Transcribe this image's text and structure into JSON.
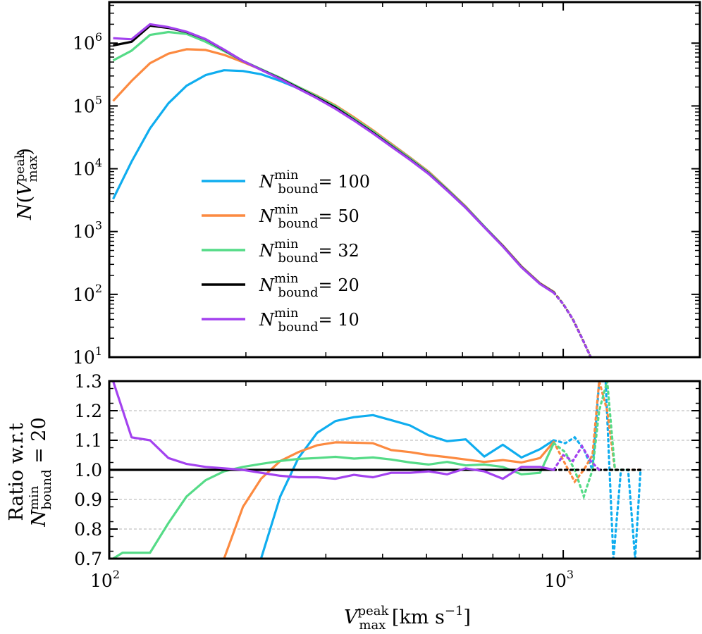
{
  "chart_data": [
    {
      "type": "line",
      "panel": "top",
      "xscale": "log",
      "yscale": "log",
      "xlim": [
        100,
        2000
      ],
      "ylim": [
        10,
        4500000
      ],
      "ylabel": "N(V_max^peak)",
      "yticks": [
        {
          "base": "10",
          "exp": "1",
          "value": 10
        },
        {
          "base": "10",
          "exp": "2",
          "value": 100
        },
        {
          "base": "10",
          "exp": "3",
          "value": 1000
        },
        {
          "base": "10",
          "exp": "4",
          "value": 10000
        },
        {
          "base": "10",
          "exp": "5",
          "value": 100000
        },
        {
          "base": "10",
          "exp": "6",
          "value": 1000000
        }
      ],
      "legend": {
        "position": "lower-left",
        "prefix": "N",
        "sup": "min",
        "sub": "bound",
        "entries": [
          "= 100",
          "= 50",
          "= 32",
          "= 20",
          "= 10"
        ]
      },
      "series": [
        {
          "name": "N_bound^min = 100",
          "color": "#0fadef",
          "x": [
            102,
            112,
            123,
            135,
            148,
            163,
            179,
            197,
            216,
            238,
            261,
            287,
            315,
            346,
            381,
            418,
            460,
            505,
            555,
            610,
            670,
            736,
            809,
            889,
            953
          ],
          "y": [
            3300,
            13000,
            44000,
            110000,
            210000,
            310000,
            370000,
            360000,
            320000,
            250000,
            190000,
            140000,
            100000,
            65000,
            40000,
            25000,
            15000,
            9000,
            4800,
            2500,
            1200,
            600,
            280,
            150,
            110
          ],
          "dotted_x": [
            953,
            1000,
            1050,
            1100,
            1150
          ],
          "dotted_y": [
            110,
            70,
            40,
            20,
            10
          ]
        },
        {
          "name": "N_bound^min = 50",
          "color": "#fc8a40",
          "x": [
            102,
            112,
            123,
            135,
            148,
            163,
            179,
            197,
            216,
            238,
            261,
            287,
            315,
            346,
            381,
            418,
            460,
            505,
            555,
            610,
            670,
            736,
            809,
            889,
            953
          ],
          "y": [
            120000,
            250000,
            480000,
            680000,
            800000,
            780000,
            650000,
            500000,
            380000,
            280000,
            200000,
            145000,
            102000,
            66000,
            41000,
            25000,
            15000,
            9000,
            4800,
            2500,
            1200,
            600,
            280,
            150,
            110
          ],
          "dotted_x": [
            953,
            1000,
            1050,
            1100,
            1150
          ],
          "dotted_y": [
            110,
            70,
            40,
            20,
            10
          ]
        },
        {
          "name": "N_bound^min = 32",
          "color": "#55db87",
          "x": [
            102,
            112,
            123,
            135,
            148,
            163,
            179,
            197,
            216,
            238,
            261,
            287,
            315,
            346,
            381,
            418,
            460,
            505,
            555,
            610,
            670,
            736,
            809,
            889,
            953
          ],
          "y": [
            530000,
            760000,
            1350000,
            1500000,
            1400000,
            1050000,
            750000,
            520000,
            385000,
            280000,
            200000,
            142000,
            99000,
            63000,
            39500,
            24000,
            14600,
            8700,
            4700,
            2450,
            1200,
            590,
            275,
            148,
            108
          ],
          "dotted_x": [
            953,
            1000,
            1050,
            1100,
            1150
          ],
          "dotted_y": [
            108,
            70,
            40,
            20,
            10
          ]
        },
        {
          "name": "N_bound^min = 20",
          "color": "#000000",
          "x": [
            102,
            112,
            123,
            135,
            148,
            163,
            179,
            197,
            216,
            238,
            261,
            287,
            315,
            346,
            381,
            418,
            460,
            505,
            555,
            610,
            670,
            736,
            809,
            889,
            953
          ],
          "y": [
            920000,
            1050000,
            1900000,
            1750000,
            1500000,
            1150000,
            780000,
            520000,
            378000,
            272000,
            193000,
            136000,
            94000,
            60000,
            37500,
            23000,
            14000,
            8400,
            4550,
            2400,
            1180,
            585,
            272,
            147,
            107
          ],
          "dotted_x": [
            953,
            1000,
            1050,
            1100,
            1150
          ],
          "dotted_y": [
            107,
            70,
            40,
            20,
            10
          ]
        },
        {
          "name": "N_bound^min = 10",
          "color": "#a342ef",
          "x": [
            102,
            112,
            123,
            135,
            148,
            163,
            179,
            197,
            216,
            238,
            261,
            287,
            315,
            346,
            381,
            418,
            460,
            505,
            555,
            610,
            670,
            736,
            809,
            889,
            953
          ],
          "y": [
            1200000,
            1150000,
            2000000,
            1800000,
            1520000,
            1160000,
            790000,
            520000,
            375000,
            268000,
            188000,
            132000,
            90000,
            58500,
            36500,
            22500,
            13800,
            8300,
            4500,
            2380,
            1170,
            580,
            270,
            146,
            106
          ],
          "dotted_x": [
            953,
            1000,
            1050,
            1100,
            1150
          ],
          "dotted_y": [
            106,
            70,
            40,
            20,
            10
          ]
        }
      ]
    },
    {
      "type": "line",
      "panel": "bottom",
      "xscale": "log",
      "yscale": "linear",
      "xlim": [
        100,
        2000
      ],
      "ylim": [
        0.7,
        1.3
      ],
      "grid": "horizontal-dashed",
      "xlabel": "V_max^peak [km s^-1]",
      "ylabel_line1": "Ratio w.r.t",
      "ylabel_line2": "N_bound^min = 20",
      "yticks": [
        "0.7",
        "0.8",
        "0.9",
        "1.0",
        "1.1",
        "1.2",
        "1.3"
      ],
      "xticks": [
        {
          "base": "10",
          "exp": "2",
          "value": 100
        },
        {
          "base": "10",
          "exp": "3",
          "value": 1000
        }
      ],
      "series": [
        {
          "name": "N_bound^min = 100",
          "color": "#0fadef",
          "x": [
            216,
            238,
            261,
            287,
            315,
            346,
            381,
            418,
            460,
            505,
            555,
            610,
            670,
            736,
            809,
            889,
            953
          ],
          "y": [
            0.7,
            0.91,
            1.04,
            1.125,
            1.165,
            1.178,
            1.185,
            1.168,
            1.15,
            1.117,
            1.097,
            1.103,
            1.045,
            1.085,
            1.042,
            1.07,
            1.1
          ],
          "dotted_x": [
            953,
            1010,
            1060,
            1110,
            1160,
            1200,
            1240,
            1290,
            1340,
            1390,
            1440,
            1480
          ],
          "dotted_y": [
            1.1,
            1.09,
            1.11,
            1.07,
            1.0,
            1.3,
            1.3,
            0.7,
            1.0,
            1.0,
            0.7,
            1.0
          ]
        },
        {
          "name": "N_bound^min = 50",
          "color": "#fc8a40",
          "x": [
            179,
            197,
            216,
            238,
            261,
            287,
            315,
            346,
            381,
            418,
            460,
            505,
            555,
            610,
            670,
            736,
            809,
            889,
            953
          ],
          "y": [
            0.7,
            0.875,
            0.97,
            1.03,
            1.06,
            1.083,
            1.093,
            1.092,
            1.09,
            1.067,
            1.06,
            1.05,
            1.043,
            1.035,
            1.027,
            1.033,
            1.025,
            1.04,
            1.095
          ],
          "dotted_x": [
            953,
            1010,
            1060,
            1110,
            1160,
            1200,
            1250,
            1300,
            1380,
            1440,
            1480
          ],
          "dotted_y": [
            1.095,
            1.02,
            0.96,
            1.0,
            1.05,
            1.3,
            1.2,
            1.0,
            1.0,
            1.0,
            1.0
          ]
        },
        {
          "name": "N_bound^min = 32",
          "color": "#55db87",
          "x": [
            102,
            107,
            112,
            123,
            135,
            148,
            163,
            179,
            197,
            216,
            238,
            261,
            287,
            315,
            346,
            381,
            418,
            460,
            505,
            555,
            610,
            670,
            736,
            809,
            889,
            953
          ],
          "y": [
            0.7,
            0.72,
            0.72,
            0.72,
            0.82,
            0.91,
            0.965,
            0.995,
            1.01,
            1.02,
            1.03,
            1.037,
            1.04,
            1.044,
            1.038,
            1.042,
            1.035,
            1.025,
            1.018,
            1.027,
            1.015,
            1.018,
            1.01,
            0.985,
            0.99,
            1.09
          ],
          "dotted_x": [
            953,
            1010,
            1060,
            1110,
            1160,
            1200,
            1250,
            1300,
            1380
          ],
          "dotted_y": [
            1.09,
            1.06,
            1.0,
            0.91,
            1.0,
            1.2,
            1.3,
            1.0,
            1.0
          ]
        },
        {
          "name": "N_bound^min = 20",
          "color": "#000000",
          "x": [
            100,
            953
          ],
          "y": [
            1.0,
            1.0
          ],
          "dotted_x": [
            953,
            1480
          ],
          "dotted_y": [
            1.0,
            1.0
          ]
        },
        {
          "name": "N_bound^min = 10",
          "color": "#a342ef",
          "x": [
            102,
            112,
            123,
            135,
            148,
            163,
            179,
            197,
            216,
            238,
            261,
            287,
            315,
            346,
            381,
            418,
            460,
            505,
            555,
            610,
            670,
            736,
            809,
            889,
            953
          ],
          "y": [
            1.3,
            1.11,
            1.1,
            1.04,
            1.02,
            1.01,
            1.005,
            1.0,
            0.99,
            0.98,
            0.975,
            0.975,
            0.97,
            0.983,
            0.975,
            0.99,
            0.99,
            0.995,
            0.985,
            1.005,
            0.995,
            0.97,
            1.01,
            1.01,
            1.0
          ],
          "dotted_x": [
            953,
            1000,
            1050,
            1100,
            1150,
            1200
          ],
          "dotted_y": [
            1.0,
            1.05,
            1.03,
            1.08,
            1.03,
            1.0
          ]
        }
      ]
    }
  ]
}
